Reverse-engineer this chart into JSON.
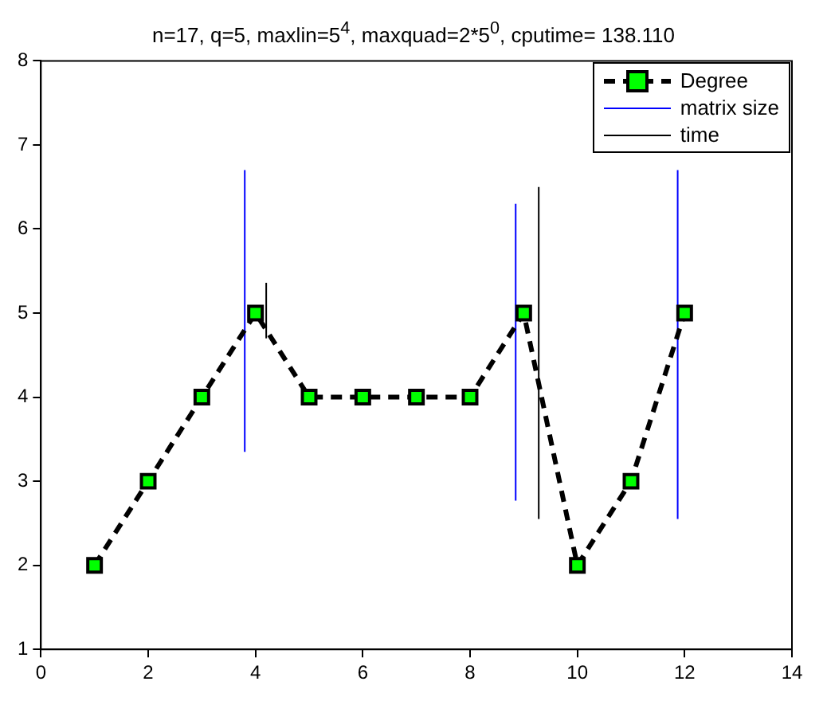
{
  "chart_data": {
    "type": "line",
    "title": "n=17, q=5, maxlin=5$^{4}$, maxquad=2*5$^{0}$, cputime= 138.110",
    "xlim": [
      0,
      14
    ],
    "xticks": [
      0,
      2,
      4,
      6,
      8,
      10,
      12,
      14
    ],
    "ylim": [
      1,
      8
    ],
    "yticks": [
      1,
      2,
      3,
      4,
      5,
      6,
      7,
      8
    ],
    "grid": false,
    "legend": "top right",
    "series": [
      {
        "name": "Degree",
        "color": "#000000",
        "colors": [
          "#00ff00",
          "#00ff00",
          "#00ff00",
          "#00ff00",
          "#00ff00",
          "#00ff00",
          "#00ff00",
          "#00ff00",
          "#00ff00",
          "#00ff00",
          "#00ff00",
          "#00ff00"
        ],
        "marker": "square",
        "line_style": "dashed",
        "x": [
          1,
          2,
          3,
          4,
          5,
          6,
          7,
          8,
          9,
          10,
          11,
          12
        ],
        "values": [
          2,
          3,
          4,
          5,
          4,
          4,
          4,
          4,
          5,
          2,
          3,
          5
        ]
      },
      {
        "name": "matrix size",
        "color": "#0000ff",
        "marker": "none",
        "line_style": "solid",
        "x": [
          3.8,
          3.8,
          null,
          8.85,
          8.85,
          null,
          11.87,
          11.87
        ],
        "values": [
          3.35,
          6.7,
          null,
          2.77,
          6.3,
          null,
          2.55,
          6.7
        ]
      },
      {
        "name": "time",
        "color": "#000000",
        "marker": "none",
        "line_style": "solid",
        "x": [
          4.2,
          4.2,
          null,
          9.28,
          9.28
        ],
        "values": [
          4.7,
          5.36,
          null,
          2.55,
          6.5
        ]
      }
    ]
  }
}
